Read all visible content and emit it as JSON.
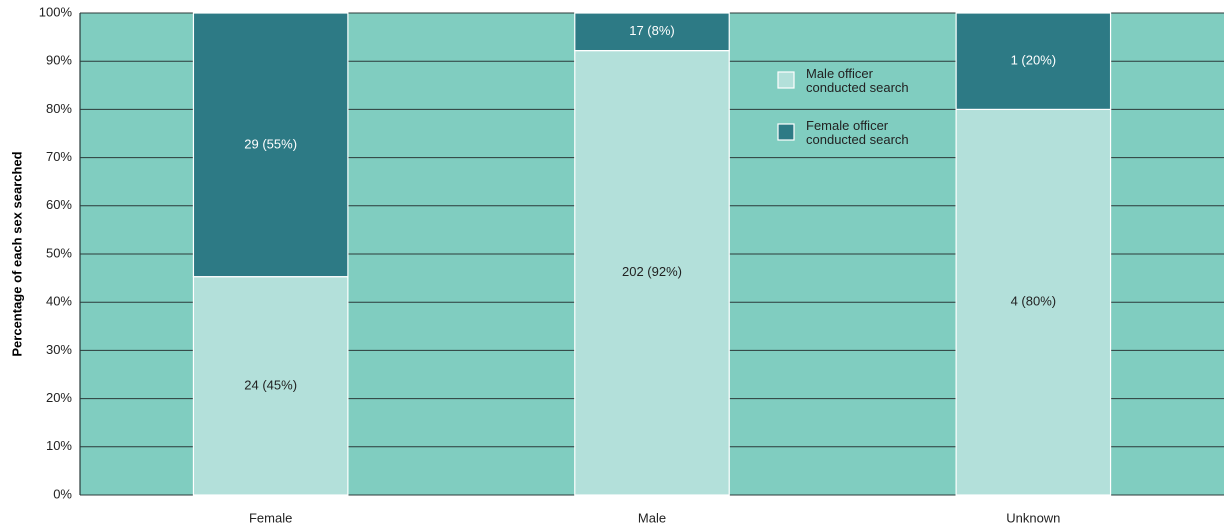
{
  "chart_data": {
    "type": "stacked_bar",
    "y_label": "Percentage of each sex searched",
    "categories": [
      "Female",
      "Male",
      "Unknown"
    ],
    "series": [
      {
        "name": "Male officer conducted search",
        "color": "#b3e0da",
        "values": [
          45.3,
          92.2,
          80
        ],
        "value_labels": [
          "24 (45%)",
          "202 (92%)",
          "4 (80%)"
        ]
      },
      {
        "name": "Female officer conducted search",
        "color": "#2d7a85",
        "values": [
          54.7,
          7.8,
          20
        ],
        "value_labels": [
          "29 (55%)",
          "17 (8%)",
          "1 (20%)"
        ]
      }
    ],
    "ylim": [
      0,
      100
    ],
    "yticks": [
      {
        "value": 0,
        "label": "0%"
      },
      {
        "value": 10,
        "label": "10%"
      },
      {
        "value": 20,
        "label": "20%"
      },
      {
        "value": 30,
        "label": "30%"
      },
      {
        "value": 40,
        "label": "40%"
      },
      {
        "value": 50,
        "label": "50%"
      },
      {
        "value": 60,
        "label": "60%"
      },
      {
        "value": 70,
        "label": "70%"
      },
      {
        "value": 80,
        "label": "80%"
      },
      {
        "value": 90,
        "label": "90%"
      },
      {
        "value": 100,
        "label": "100%"
      }
    ],
    "grid": true,
    "background": "#80cdc0",
    "legend": "top"
  }
}
